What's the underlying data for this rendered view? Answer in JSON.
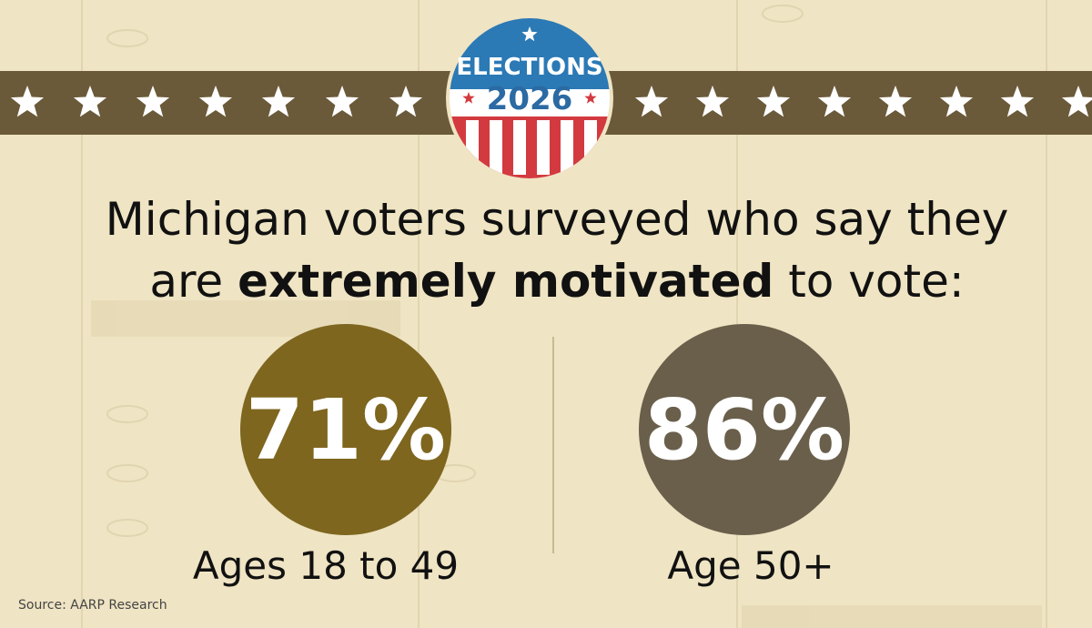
{
  "badge": {
    "line1": "ELECTIONS",
    "line2": "2026"
  },
  "headline": {
    "line1": "Michigan voters surveyed who say they",
    "line2_start": "are",
    "emphasis": "extremely motivated",
    "line2_end": "to vote:"
  },
  "stats": [
    {
      "value_label": "71%",
      "label": "Ages 18 to 49"
    },
    {
      "value_label": "86%",
      "label": "Age 50+"
    }
  ],
  "source": "Source: AARP Research"
}
